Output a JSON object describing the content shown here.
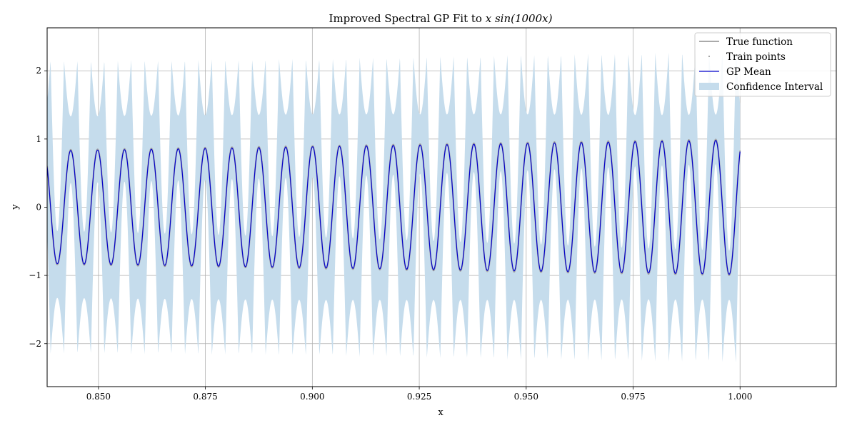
{
  "chart_data": {
    "type": "line",
    "title": "Improved Spectral GP Fit to x sin(1000x)",
    "title_text": "Improved Spectral GP Fit to ",
    "title_math": "x sin(1000x)",
    "xlabel": "x",
    "ylabel": "y",
    "xlim": [
      0.838,
      1.0225
    ],
    "ylim": [
      -2.63,
      2.63
    ],
    "xticks": [
      0.85,
      0.875,
      0.9,
      0.925,
      0.95,
      0.975,
      1.0
    ],
    "xtick_labels": [
      "0.850",
      "0.875",
      "0.900",
      "0.925",
      "0.950",
      "0.975",
      "1.000"
    ],
    "yticks": [
      -2,
      -1,
      0,
      1,
      2
    ],
    "ytick_labels": [
      "−2",
      "−1",
      "0",
      "1",
      "2"
    ],
    "grid": true,
    "legend_position": "top-right",
    "function": "x*sin(1000x)",
    "x_range": [
      0.838,
      1.0
    ],
    "series": [
      {
        "name": "True function",
        "kind": "line",
        "color": "#aaaaaa"
      },
      {
        "name": "Train points",
        "kind": "points",
        "color": "#888888"
      },
      {
        "name": "GP Mean",
        "kind": "line",
        "color": "#0000cc"
      },
      {
        "name": "Confidence Interval",
        "kind": "band",
        "color": "#c5dcec",
        "band_max": [
          [
            0.84,
            2.15
          ],
          [
            0.9,
            2.18
          ],
          [
            0.95,
            2.24
          ],
          [
            0.98,
            2.27
          ],
          [
            1.0,
            2.28
          ]
        ],
        "band_min": [
          [
            0.84,
            0.49
          ],
          [
            0.9,
            0.46
          ],
          [
            0.95,
            0.41
          ],
          [
            0.98,
            0.37
          ],
          [
            1.0,
            0.36
          ]
        ]
      }
    ]
  }
}
